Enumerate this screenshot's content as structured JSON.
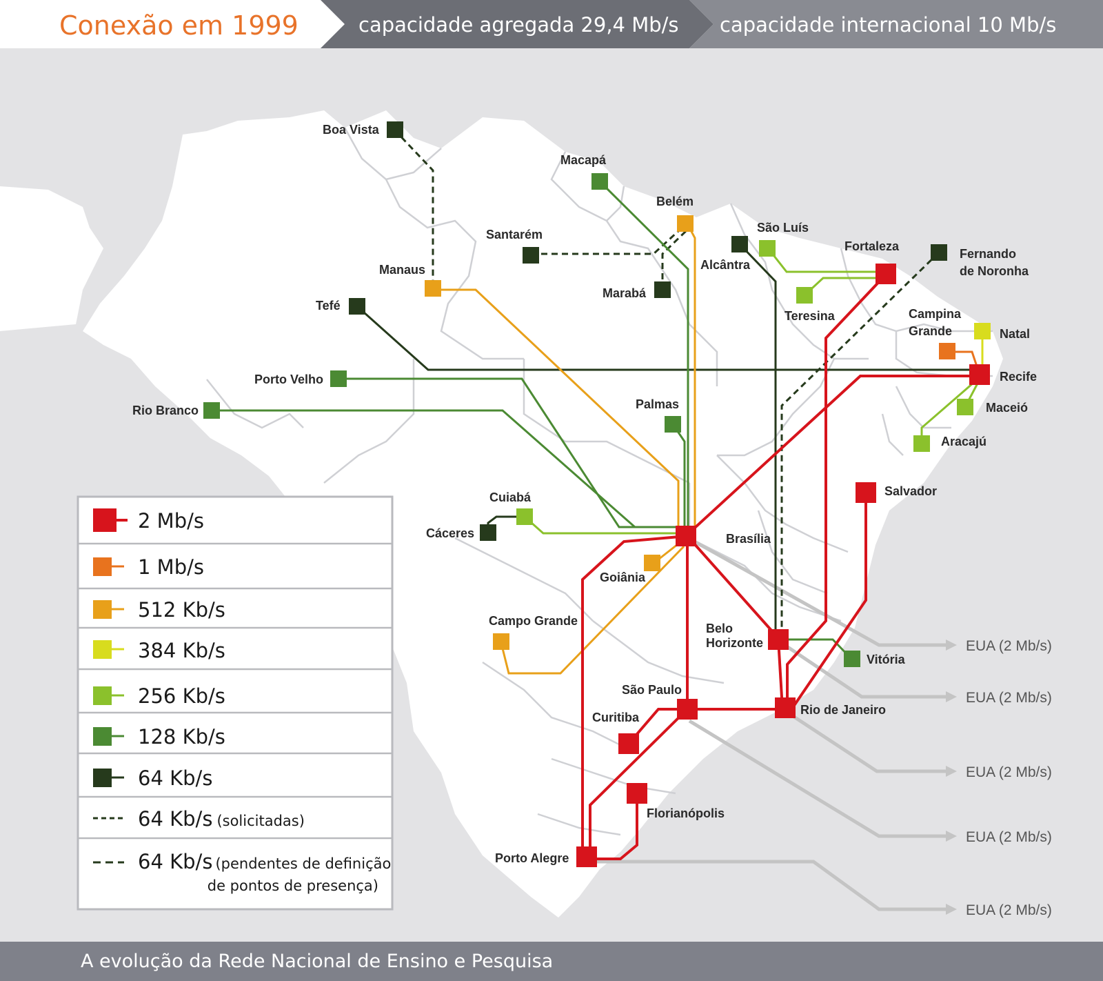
{
  "header": {
    "title": "Conexão em 1999",
    "aggregate": "capacidade agregada 29,4 Mb/s",
    "international": "capacidade internacional  10 Mb/s"
  },
  "footer": {
    "caption": "A evolução da Rede Nacional de Ensino e Pesquisa"
  },
  "colors": {
    "2mb": "#d7141c",
    "1mb": "#e8731e",
    "512kb": "#e8a01a",
    "384kb": "#d8dc1e",
    "256kb": "#8bc12c",
    "128kb": "#4b8a33",
    "64kb": "#263a1c",
    "international": "#c4c4c4",
    "header_dark": "#6c6e75",
    "header_mid": "#898b92",
    "footer_bg": "#7f818a",
    "map_fill": "#e3e3e5"
  },
  "cities": [
    {
      "name": "Boa Vista",
      "speed": "64kb"
    },
    {
      "name": "Macapá",
      "speed": "128kb"
    },
    {
      "name": "Belém",
      "speed": "512kb"
    },
    {
      "name": "Santarém",
      "speed": "64kb"
    },
    {
      "name": "Marabá",
      "speed": "64kb"
    },
    {
      "name": "Manaus",
      "speed": "512kb"
    },
    {
      "name": "São Luís",
      "speed": "256kb"
    },
    {
      "name": "Alcântra",
      "speed": "64kb"
    },
    {
      "name": "Fortaleza",
      "speed": "2mb"
    },
    {
      "name": "Fernando de Noronha",
      "speed": "64kb"
    },
    {
      "name": "Teresina",
      "speed": "256kb"
    },
    {
      "name": "Tefé",
      "speed": "64kb"
    },
    {
      "name": "Campina Grande",
      "speed": "1mb"
    },
    {
      "name": "Natal",
      "speed": "384kb"
    },
    {
      "name": "Recife",
      "speed": "2mb"
    },
    {
      "name": "Porto Velho",
      "speed": "128kb"
    },
    {
      "name": "Maceió",
      "speed": "256kb"
    },
    {
      "name": "Rio Branco",
      "speed": "128kb"
    },
    {
      "name": "Palmas",
      "speed": "128kb"
    },
    {
      "name": "Aracajú",
      "speed": "256kb"
    },
    {
      "name": "Salvador",
      "speed": "2mb"
    },
    {
      "name": "Cuiabá",
      "speed": "256kb"
    },
    {
      "name": "Cáceres",
      "speed": "64kb"
    },
    {
      "name": "Brasília",
      "speed": "2mb"
    },
    {
      "name": "Goiânia",
      "speed": "512kb"
    },
    {
      "name": "Campo Grande",
      "speed": "512kb"
    },
    {
      "name": "Belo Horizonte",
      "speed": "2mb"
    },
    {
      "name": "Vitória",
      "speed": "128kb"
    },
    {
      "name": "São Paulo",
      "speed": "2mb"
    },
    {
      "name": "Rio de Janeiro",
      "speed": "2mb"
    },
    {
      "name": "Curitiba",
      "speed": "2mb"
    },
    {
      "name": "Florianópolis",
      "speed": "2mb"
    },
    {
      "name": "Porto Alegre",
      "speed": "2mb"
    }
  ],
  "international_links": [
    {
      "label": "EUA (2 Mb/s)",
      "from": "Brasília"
    },
    {
      "label": "EUA (2 Mb/s)",
      "from": "Belo Horizonte"
    },
    {
      "label": "EUA (2 Mb/s)",
      "from": "Rio de Janeiro"
    },
    {
      "label": "EUA (2 Mb/s)",
      "from": "São Paulo"
    },
    {
      "label": "EUA (2 Mb/s)",
      "from": "Porto Alegre"
    }
  ],
  "legend": [
    {
      "label": "2 Mb/s",
      "speed": "2mb",
      "style": "solid",
      "note": ""
    },
    {
      "label": "1 Mb/s",
      "speed": "1mb",
      "style": "solid",
      "note": ""
    },
    {
      "label": "512 Kb/s",
      "speed": "512kb",
      "style": "solid",
      "note": ""
    },
    {
      "label": "384 Kb/s",
      "speed": "384kb",
      "style": "solid",
      "note": ""
    },
    {
      "label": "256 Kb/s",
      "speed": "256kb",
      "style": "solid",
      "note": ""
    },
    {
      "label": "128 Kb/s",
      "speed": "128kb",
      "style": "solid",
      "note": ""
    },
    {
      "label": "64 Kb/s",
      "speed": "64kb",
      "style": "solid",
      "note": ""
    },
    {
      "label": "64 Kb/s",
      "speed": "64kb",
      "style": "dashed",
      "note": "(solicitadas)"
    },
    {
      "label": "64 Kb/s",
      "speed": "64kb",
      "style": "dashed",
      "note": "(pendentes de definição",
      "note2": "de pontos de presença)"
    }
  ]
}
